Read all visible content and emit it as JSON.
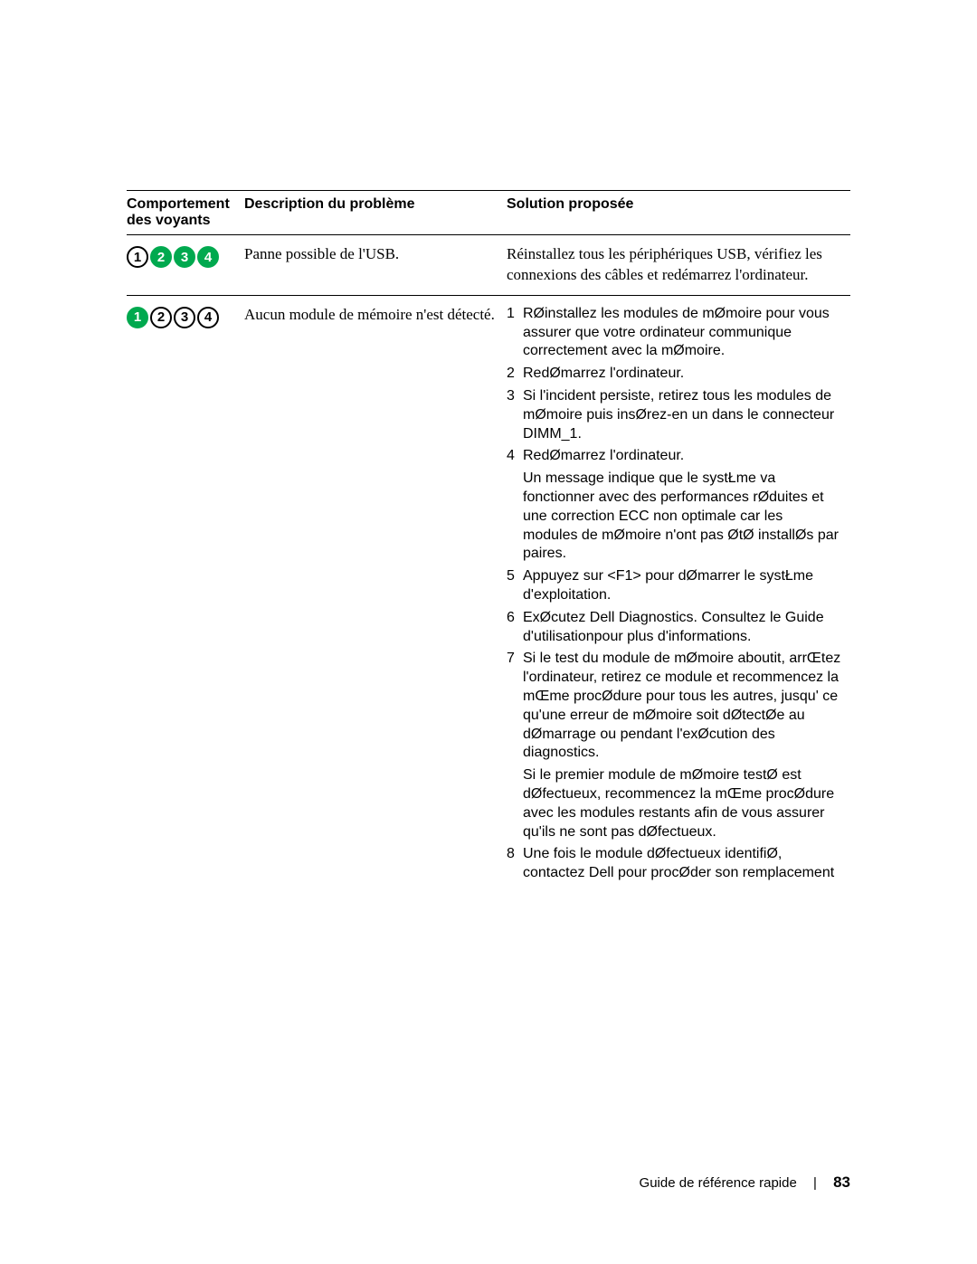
{
  "table": {
    "headers": {
      "lights": "Comportement des voyants",
      "description": "Description du problème",
      "solution": "Solution proposée"
    },
    "rows": [
      {
        "lights": [
          {
            "n": "1",
            "state": "off"
          },
          {
            "n": "2",
            "state": "on"
          },
          {
            "n": "3",
            "state": "on"
          },
          {
            "n": "4",
            "state": "on"
          }
        ],
        "description": "Panne possible de l'USB.",
        "solution_serif": "Réinstallez tous les périphériques USB, vérifiez les connexions des câbles et redémarrez l'ordinateur."
      },
      {
        "lights": [
          {
            "n": "1",
            "state": "on"
          },
          {
            "n": "2",
            "state": "off"
          },
          {
            "n": "3",
            "state": "off"
          },
          {
            "n": "4",
            "state": "off"
          }
        ],
        "description": "Aucun module de mémoire n'est détecté.",
        "solution_steps": [
          {
            "n": "1",
            "text": "RØinstallez les modules de mØmoire pour vous assurer que votre ordinateur communique correctement avec la mØmoire."
          },
          {
            "n": "2",
            "text": "RedØmarrez l'ordinateur."
          },
          {
            "n": "3",
            "text": "Si l'incident persiste, retirez tous les modules de mØmoire puis insØrez-en un dans le connecteur DIMM_1."
          },
          {
            "n": "4",
            "text": "RedØmarrez l'ordinateur.",
            "sub": "Un message indique que le systŁme va fonctionner avec des performances rØduites et une correction ECC non optimale car les modules de mØmoire n'ont pas ØtØ installØs par paires."
          },
          {
            "n": "5",
            "text": "Appuyez sur <F1> pour dØmarrer le systŁme d'exploitation."
          },
          {
            "n": "6",
            "text": "ExØcutez Dell Diagnostics. Consultez le Guide d'utilisationpour plus d'informations."
          },
          {
            "n": "7",
            "text": "Si le test du module de mØmoire aboutit, arrŒtez l'ordinateur, retirez ce module et recommencez la mŒme procØdure pour tous les autres, jusqu' ce qu'une erreur de mØmoire soit dØtectØe au dØmarrage ou pendant l'exØcution des diagnostics.",
            "sub": "Si le premier module de mØmoire testØ est dØfectueux, recommencez la mŒme procØdure avec les modules restants afin de vous assurer qu'ils ne sont pas dØfectueux."
          },
          {
            "n": "8",
            "text": "Une fois le module dØfectueux identifiØ, contactez Dell pour procØder   son remplacement"
          }
        ]
      }
    ]
  },
  "footer": {
    "title": "Guide de référence rapide",
    "page": "83"
  },
  "colors": {
    "led_on": "#00a94f",
    "text": "#000000",
    "background": "#ffffff"
  }
}
